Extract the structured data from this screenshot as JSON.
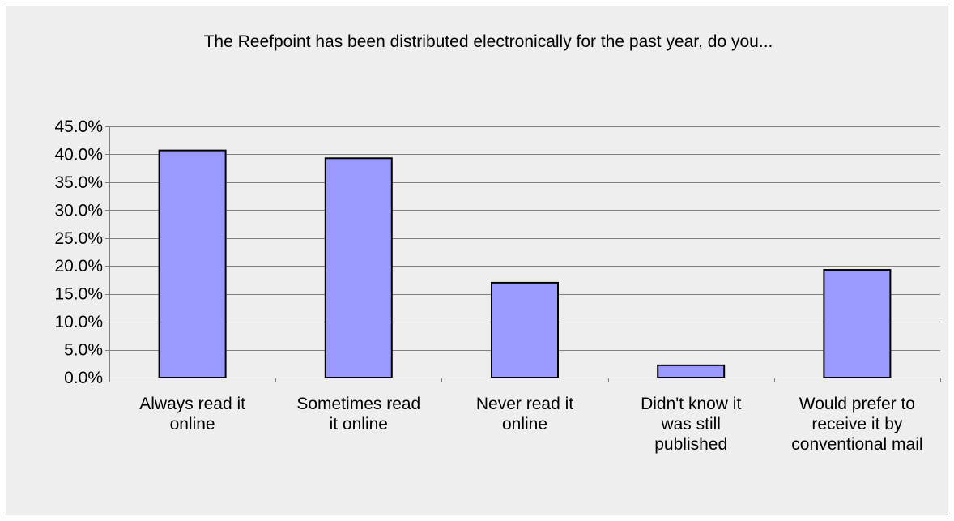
{
  "colors": {
    "background": "#eeeeee",
    "plot_background": "#eeeeee",
    "bar_fill": "#9999ff",
    "bar_stroke": "#000000",
    "gridline": "#808080",
    "text": "#000000",
    "border": "#888888"
  },
  "chart_data": {
    "type": "bar",
    "title": "The Reefpoint has been distributed electronically for the past year, do you...",
    "xlabel": "",
    "ylabel": "",
    "categories": [
      "Always read it online",
      "Sometimes read it online",
      "Never read it online",
      "Didn't know it was still published",
      "Would prefer to receive it by conventional mail"
    ],
    "category_label_lines": [
      [
        "Always read it",
        "online"
      ],
      [
        "Sometimes read",
        "it online"
      ],
      [
        "Never read it",
        "online"
      ],
      [
        "Didn't know it",
        "was still",
        "published"
      ],
      [
        "Would prefer to",
        "receive it by",
        "conventional mail"
      ]
    ],
    "values": [
      40.7,
      39.3,
      17.0,
      2.2,
      19.3
    ],
    "value_unit": "%",
    "ylim": [
      0,
      45
    ],
    "yticks": [
      0,
      5,
      10,
      15,
      20,
      25,
      30,
      35,
      40,
      45
    ],
    "ytick_labels": [
      "0.0%",
      "5.0%",
      "10.0%",
      "15.0%",
      "20.0%",
      "25.0%",
      "30.0%",
      "35.0%",
      "40.0%",
      "45.0%"
    ],
    "grid": true,
    "legend": "none"
  }
}
